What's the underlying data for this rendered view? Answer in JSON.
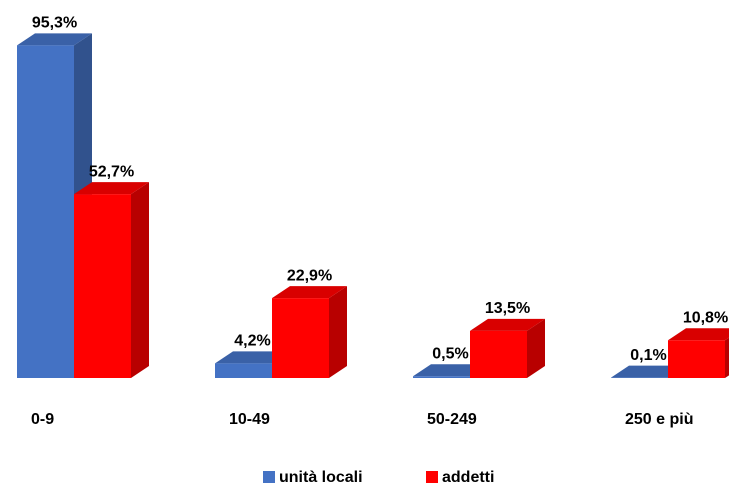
{
  "chart_data": {
    "type": "bar3d",
    "categories": [
      "0-9",
      "10-49",
      "50-249",
      "250 e più"
    ],
    "series": [
      {
        "name": "unità locali",
        "color": "#4472c4",
        "values": [
          95.3,
          4.2,
          0.5,
          0.1
        ],
        "value_labels": [
          "95,3%",
          "4,2%",
          "0,5%",
          "0,1%"
        ]
      },
      {
        "name": "addetti",
        "color": "#ff0000",
        "values": [
          52.7,
          22.9,
          13.5,
          10.8
        ],
        "value_labels": [
          "52,7%",
          "22,9%",
          "13,5%",
          "10,8%"
        ]
      }
    ],
    "legend": "bottom"
  }
}
